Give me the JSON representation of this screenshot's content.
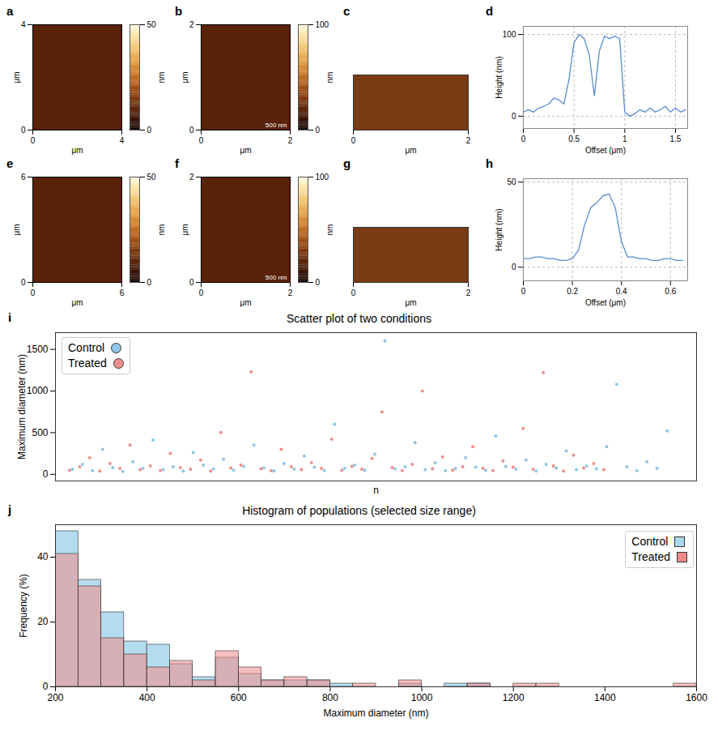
{
  "chart_data": [
    {
      "panel": "a",
      "type": "image",
      "x_label": "μm",
      "y_label": "μm",
      "xlim": [
        0,
        4
      ],
      "xticks": [
        0,
        4
      ],
      "ylim": [
        0,
        4
      ],
      "yticks": [
        0,
        4
      ],
      "colorbar": {
        "label": "nm",
        "range": [
          0,
          50
        ],
        "ticks": [
          0,
          50
        ]
      }
    },
    {
      "panel": "b",
      "type": "image",
      "x_label": "μm",
      "y_label": "μm",
      "xlim": [
        0,
        2
      ],
      "xticks": [
        0,
        2
      ],
      "ylim": [
        0,
        2
      ],
      "yticks": [
        0,
        2
      ],
      "colorbar": {
        "label": "nm",
        "range": [
          0,
          100
        ],
        "ticks": [
          0,
          100
        ]
      },
      "annotations": [
        "500 nm"
      ]
    },
    {
      "panel": "c",
      "type": "surface",
      "x_label": "μm",
      "xlim": [
        0,
        2
      ],
      "xticks": [
        0,
        2
      ],
      "tick_labels": "x"
    },
    {
      "panel": "d",
      "type": "line",
      "x_label": "Offset (μm)",
      "y_label": "Height (nm)",
      "color": "#5b8bd0",
      "grid": true,
      "xlim": [
        0,
        1.62
      ],
      "xticks": [
        0,
        0.5,
        1,
        1.5
      ],
      "ylim": [
        -15,
        110
      ],
      "yticks": [
        0,
        100
      ],
      "x": [
        0,
        0.05,
        0.1,
        0.15,
        0.2,
        0.25,
        0.3,
        0.35,
        0.4,
        0.45,
        0.5,
        0.55,
        0.6,
        0.65,
        0.7,
        0.75,
        0.8,
        0.85,
        0.9,
        0.95,
        1,
        1.05,
        1.1,
        1.15,
        1.2,
        1.25,
        1.3,
        1.35,
        1.4,
        1.45,
        1.5,
        1.55,
        1.6
      ],
      "values": [
        5,
        8,
        5,
        10,
        12,
        15,
        22,
        20,
        15,
        45,
        90,
        100,
        95,
        75,
        25,
        80,
        98,
        95,
        98,
        95,
        5,
        0,
        3,
        8,
        5,
        10,
        5,
        8,
        12,
        5,
        10,
        5,
        8
      ]
    },
    {
      "panel": "e",
      "type": "image",
      "x_label": "μm",
      "y_label": "μm",
      "xlim": [
        0,
        6
      ],
      "xticks": [
        0,
        6
      ],
      "ylim": [
        0,
        6
      ],
      "yticks": [
        0,
        6
      ],
      "colorbar": {
        "label": "nm",
        "range": [
          0,
          50
        ],
        "ticks": [
          0,
          50
        ]
      }
    },
    {
      "panel": "f",
      "type": "image",
      "x_label": "μm",
      "y_label": "μm",
      "xlim": [
        0,
        2
      ],
      "xticks": [
        0,
        2
      ],
      "ylim": [
        0,
        2
      ],
      "yticks": [
        0,
        2
      ],
      "colorbar": {
        "label": "nm",
        "range": [
          0,
          100
        ],
        "ticks": [
          0,
          100
        ]
      },
      "annotations": [
        "500 nm"
      ]
    },
    {
      "panel": "g",
      "type": "surface",
      "x_label": "μm",
      "xlim": [
        0,
        2
      ],
      "xticks": [
        0,
        2
      ],
      "tick_labels": "x"
    },
    {
      "panel": "h",
      "type": "line",
      "x_label": "Offset (μm)",
      "y_label": "Height (nm)",
      "color": "#5b8bd0",
      "grid": true,
      "xlim": [
        0,
        0.67
      ],
      "xticks": [
        0,
        0.2,
        0.4,
        0.6
      ],
      "ylim": [
        -8,
        52
      ],
      "yticks": [
        0,
        50
      ],
      "x": [
        0,
        0.025,
        0.05,
        0.075,
        0.1,
        0.125,
        0.15,
        0.175,
        0.2,
        0.225,
        0.25,
        0.275,
        0.3,
        0.325,
        0.35,
        0.375,
        0.4,
        0.425,
        0.45,
        0.475,
        0.5,
        0.525,
        0.55,
        0.575,
        0.6,
        0.625,
        0.65
      ],
      "values": [
        5,
        5,
        6,
        6,
        5,
        5,
        4,
        4,
        5,
        10,
        25,
        35,
        38,
        42,
        43,
        35,
        15,
        6,
        6,
        5,
        5,
        4,
        4,
        5,
        5,
        4,
        4
      ]
    },
    {
      "panel": "i",
      "type": "scatter",
      "title": "Scatter plot of two conditions",
      "x_label": "n",
      "y_label": "Maximum diameter (nm)",
      "xlim": [
        -30,
        1560
      ],
      "xticks": [],
      "ylim": [
        -80,
        1700
      ],
      "yticks": [
        0,
        500,
        1000,
        1500
      ],
      "tick_labels": "y",
      "legend": "upper left",
      "marker": "circle",
      "series": [
        {
          "name": "Control",
          "color": "#8fc6e6",
          "x": [
            12,
            37,
            62,
            87,
            112,
            137,
            162,
            187,
            212,
            237,
            262,
            287,
            312,
            337,
            362,
            387,
            412,
            437,
            462,
            487,
            512,
            537,
            562,
            587,
            612,
            637,
            662,
            687,
            712,
            737,
            762,
            787,
            812,
            837,
            862,
            887,
            912,
            937,
            962,
            987,
            1012,
            1037,
            1062,
            1087,
            1112,
            1137,
            1162,
            1187,
            1212,
            1237,
            1262,
            1287,
            1312,
            1337,
            1362,
            1387,
            1412,
            1437,
            1462,
            1487
          ],
          "values": [
            60,
            120,
            45,
            300,
            80,
            35,
            150,
            70,
            410,
            55,
            90,
            40,
            260,
            110,
            65,
            180,
            50,
            95,
            350,
            75,
            40,
            130,
            60,
            220,
            85,
            45,
            600,
            70,
            110,
            50,
            240,
            1600,
            65,
            90,
            380,
            55,
            140,
            45,
            70,
            200,
            85,
            50,
            460,
            95,
            60,
            170,
            40,
            120,
            75,
            280,
            55,
            100,
            65,
            330,
            1080,
            90,
            45,
            150,
            70,
            520
          ]
        },
        {
          "name": "Treated",
          "color": "#ee8f8f",
          "x": [
            5,
            30,
            55,
            80,
            105,
            130,
            155,
            180,
            205,
            230,
            255,
            280,
            305,
            330,
            355,
            380,
            405,
            430,
            455,
            480,
            505,
            530,
            555,
            580,
            605,
            630,
            655,
            680,
            705,
            730,
            755,
            780,
            805,
            830,
            855,
            880,
            905,
            930,
            955,
            980,
            1005,
            1030,
            1055,
            1080,
            1105,
            1130,
            1155,
            1180,
            1205,
            1230,
            1255,
            1280,
            1305,
            1330
          ],
          "values": [
            50,
            90,
            200,
            40,
            130,
            70,
            350,
            55,
            100,
            45,
            250,
            80,
            60,
            170,
            40,
            500,
            75,
            110,
            1230,
            65,
            45,
            300,
            90,
            55,
            140,
            70,
            420,
            50,
            95,
            60,
            190,
            750,
            80,
            45,
            120,
            1000,
            65,
            210,
            50,
            90,
            330,
            70,
            45,
            160,
            85,
            550,
            60,
            1220,
            100,
            40,
            230,
            75,
            130,
            55
          ]
        }
      ]
    },
    {
      "panel": "j",
      "type": "histogram",
      "title": "Histogram of populations (selected size range)",
      "x_label": "Maximum diameter (nm)",
      "y_label": "Frequency (%)",
      "xlim": [
        200,
        1600
      ],
      "xticks": [
        200,
        400,
        600,
        800,
        1000,
        1200,
        1400,
        1600
      ],
      "ylim": [
        0,
        50
      ],
      "yticks": [
        0,
        20,
        40
      ],
      "legend": "upper right",
      "bins": [
        200,
        250,
        300,
        350,
        400,
        450,
        500,
        550,
        600,
        650,
        700,
        750,
        800,
        850,
        900,
        950,
        1000,
        1050,
        1100,
        1150,
        1200,
        1250,
        1300,
        1350,
        1400,
        1450,
        1500,
        1550,
        1600
      ],
      "series": [
        {
          "name": "Control",
          "color": "#add8ec",
          "values": [
            48,
            33,
            23,
            14,
            13,
            7,
            3,
            9,
            4,
            2,
            2,
            2,
            1,
            0,
            0,
            1,
            0,
            1,
            1,
            0,
            0,
            0,
            0,
            0,
            0,
            0,
            0,
            0
          ]
        },
        {
          "name": "Treated",
          "color": "#f08a8a",
          "values": [
            41,
            31,
            15,
            10,
            6,
            8,
            2,
            11,
            6,
            2,
            3,
            2,
            0,
            1,
            0,
            2,
            0,
            0,
            1,
            0,
            1,
            1,
            0,
            0,
            0,
            0,
            0,
            1
          ]
        }
      ]
    }
  ]
}
